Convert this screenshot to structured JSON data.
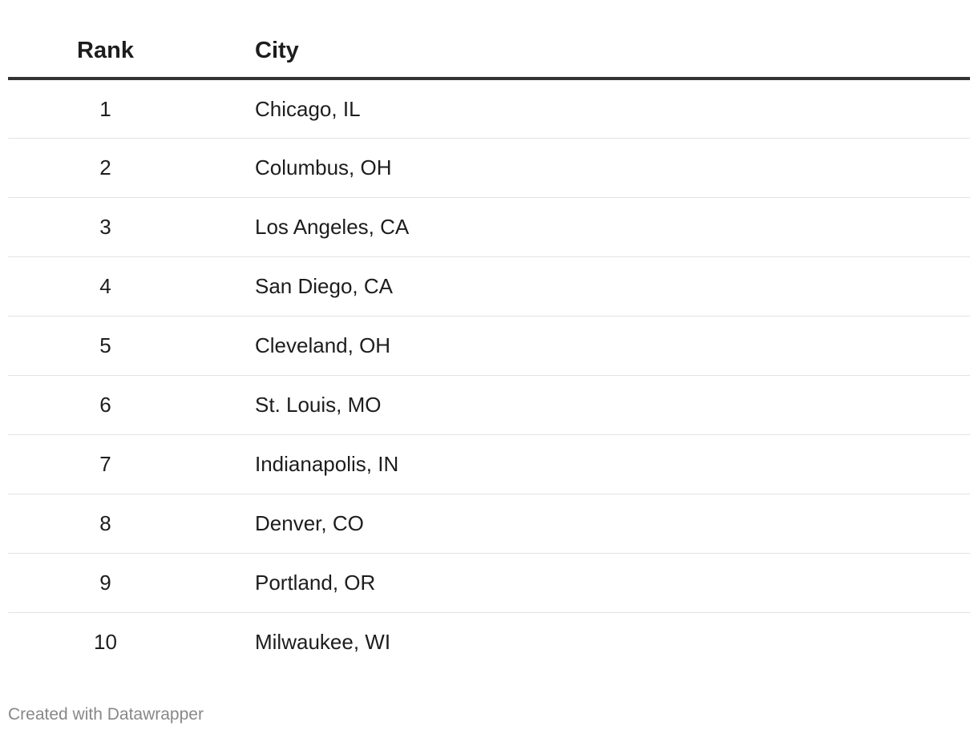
{
  "chart_data": {
    "type": "table",
    "columns": [
      "Rank",
      "City"
    ],
    "rows": [
      {
        "rank": "1",
        "city": "Chicago, IL"
      },
      {
        "rank": "2",
        "city": "Columbus, OH"
      },
      {
        "rank": "3",
        "city": "Los Angeles, CA"
      },
      {
        "rank": "4",
        "city": "San Diego, CA"
      },
      {
        "rank": "5",
        "city": "Cleveland, OH"
      },
      {
        "rank": "6",
        "city": "St. Louis, MO"
      },
      {
        "rank": "7",
        "city": "Indianapolis, IN"
      },
      {
        "rank": "8",
        "city": "Denver, CO"
      },
      {
        "rank": "9",
        "city": "Portland, OR"
      },
      {
        "rank": "10",
        "city": "Milwaukee, WI"
      }
    ]
  },
  "footer": {
    "credit": "Created with Datawrapper"
  },
  "colors": {
    "text": "#1d1d1d",
    "header_rule": "#333333",
    "row_rule": "#e2e2e2",
    "footer_text": "#888888"
  }
}
